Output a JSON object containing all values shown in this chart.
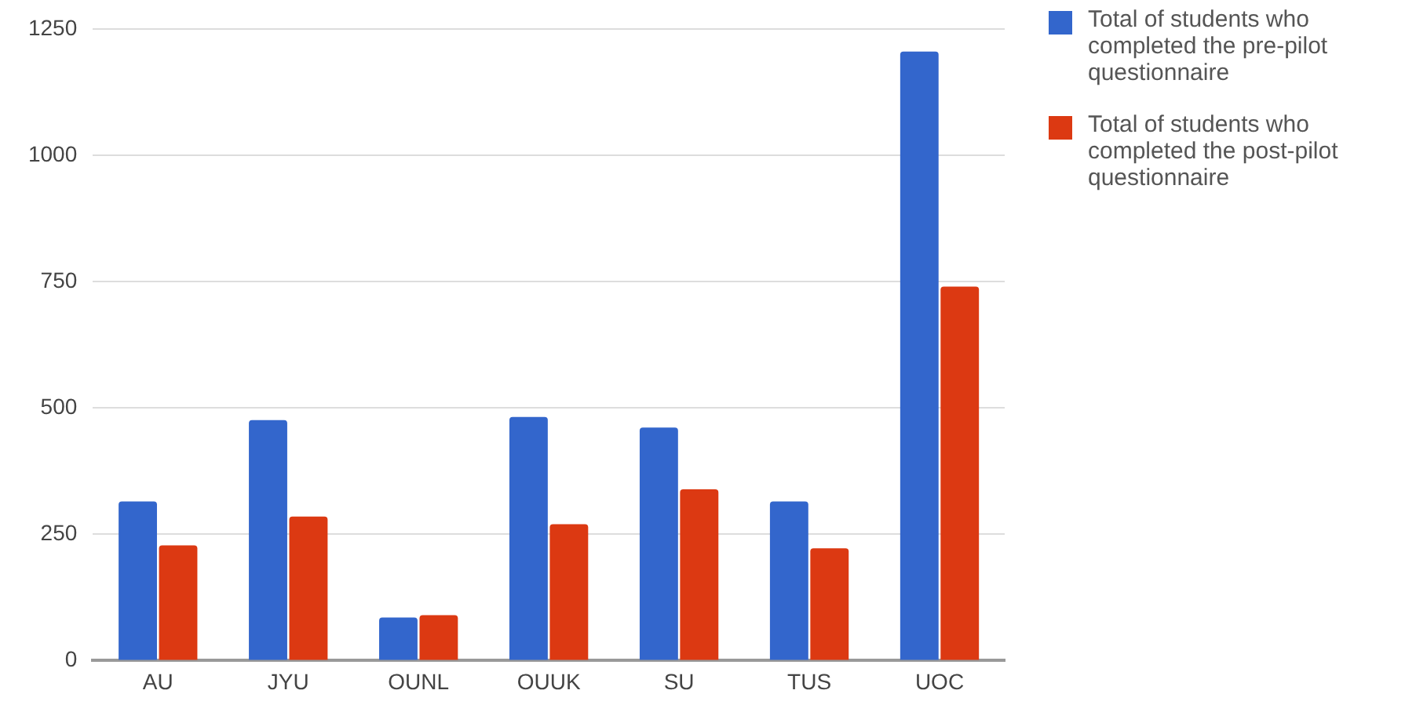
{
  "chart_data": {
    "type": "bar",
    "categories": [
      "AU",
      "JYU",
      "OUNL",
      "OUUK",
      "SU",
      "TUS",
      "UOC"
    ],
    "series": [
      {
        "name": "Total of students who completed the pre-pilot questionnaire",
        "color": "#3366cc",
        "values": [
          315,
          476,
          85,
          482,
          461,
          315,
          1205
        ]
      },
      {
        "name": "Total of students who completed the post-pilot questionnaire",
        "color": "#dc3912",
        "values": [
          228,
          285,
          90,
          270,
          339,
          222,
          740
        ]
      }
    ],
    "ylim": [
      0,
      1250
    ],
    "yticks": [
      0,
      250,
      500,
      750,
      1000,
      1250
    ],
    "grid": "y",
    "legend": "top right"
  }
}
